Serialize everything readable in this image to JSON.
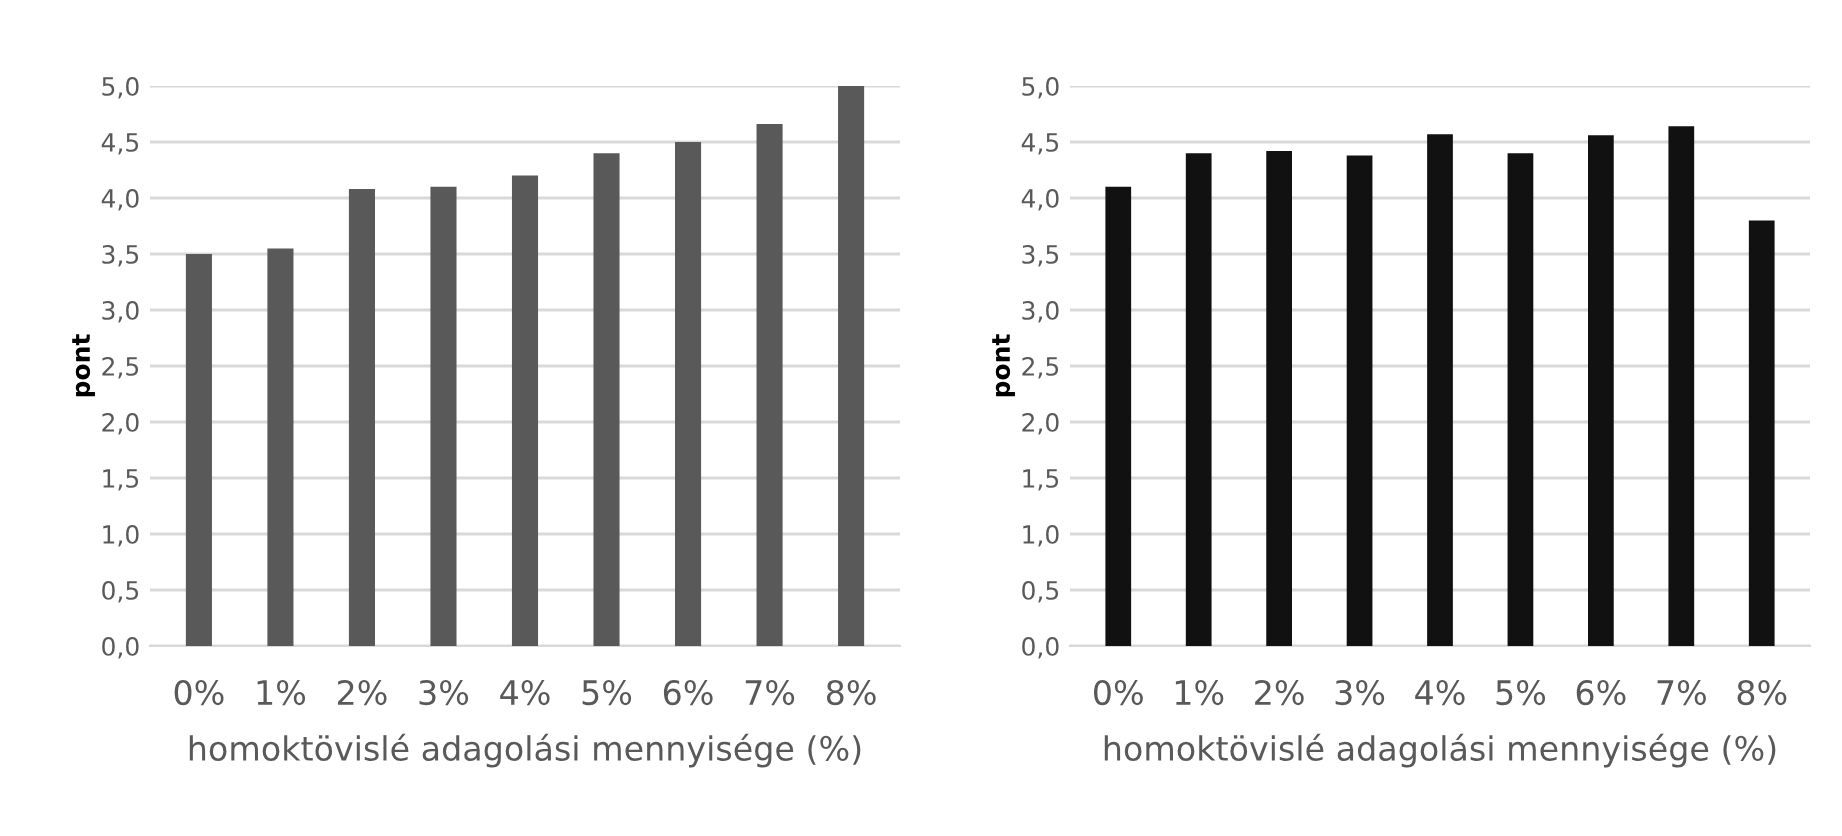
{
  "chart_data": [
    {
      "type": "bar",
      "categories": [
        "0%",
        "1%",
        "2%",
        "3%",
        "4%",
        "5%",
        "6%",
        "7%",
        "8%"
      ],
      "values": [
        3.5,
        3.55,
        4.08,
        4.1,
        4.2,
        4.4,
        4.5,
        4.66,
        5.0
      ],
      "color": "#595959",
      "xlabel": "homoktövislé adagolási mennyisége (%)",
      "ylabel": "pont",
      "ylim": [
        0,
        5
      ],
      "yticks": [
        {
          "value": 0,
          "label": "0,0"
        },
        {
          "value": 0.5,
          "label": "0,5"
        },
        {
          "value": 1,
          "label": "1,0"
        },
        {
          "value": 1.5,
          "label": "1,5"
        },
        {
          "value": 2,
          "label": "2,0"
        },
        {
          "value": 2.5,
          "label": "2,5"
        },
        {
          "value": 3,
          "label": "3,0"
        },
        {
          "value": 3.5,
          "label": "3,5"
        },
        {
          "value": 4,
          "label": "4,0"
        },
        {
          "value": 4.5,
          "label": "4,5"
        },
        {
          "value": 5,
          "label": "5,0"
        }
      ],
      "grid": "y"
    },
    {
      "type": "bar",
      "categories": [
        "0%",
        "1%",
        "2%",
        "3%",
        "4%",
        "5%",
        "6%",
        "7%",
        "8%"
      ],
      "values": [
        4.1,
        4.4,
        4.42,
        4.38,
        4.57,
        4.4,
        4.56,
        4.64,
        3.8
      ],
      "color": "#111111",
      "xlabel": "homoktövislé adagolási mennyisége (%)",
      "ylabel": "pont",
      "ylim": [
        0,
        5
      ],
      "yticks": [
        {
          "value": 0,
          "label": "0,0"
        },
        {
          "value": 0.5,
          "label": "0,5"
        },
        {
          "value": 1,
          "label": "1,0"
        },
        {
          "value": 1.5,
          "label": "1,5"
        },
        {
          "value": 2,
          "label": "2,0"
        },
        {
          "value": 2.5,
          "label": "2,5"
        },
        {
          "value": 3,
          "label": "3,0"
        },
        {
          "value": 3.5,
          "label": "3,5"
        },
        {
          "value": 4,
          "label": "4,0"
        },
        {
          "value": 4.5,
          "label": "4,5"
        },
        {
          "value": 5,
          "label": "5,0"
        }
      ],
      "grid": "y"
    }
  ]
}
